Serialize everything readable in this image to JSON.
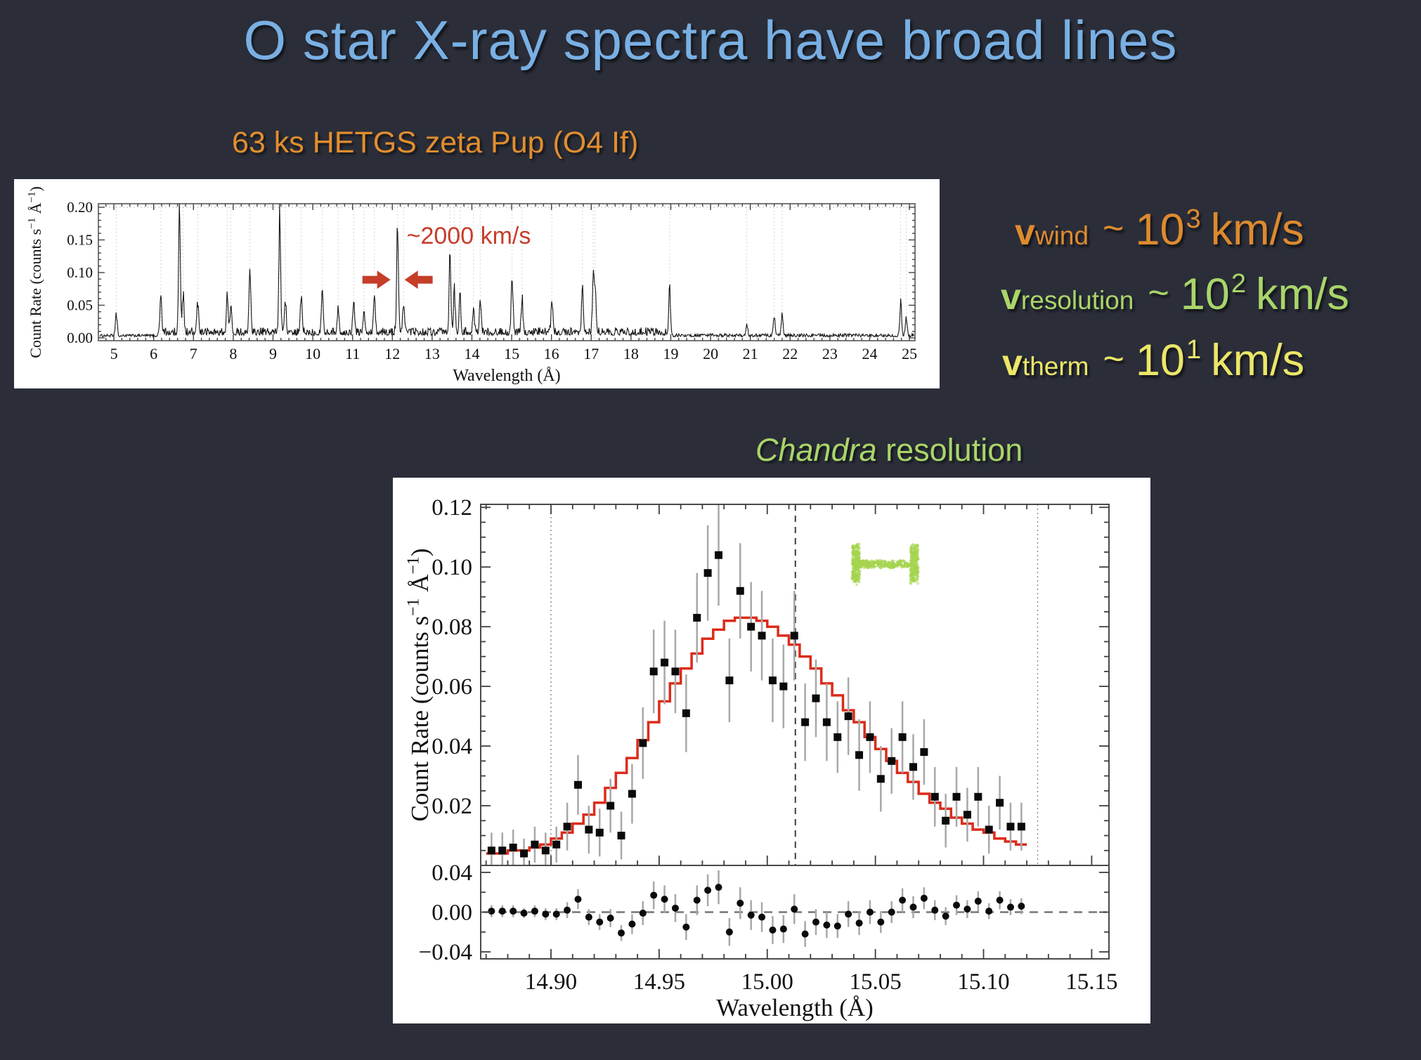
{
  "slide": {
    "background": "#2b2e39",
    "title": {
      "text": "O star X-ray spectra have broad lines",
      "color": "#79b0e4"
    },
    "subtitle": {
      "text": "63 ks HETGS zeta Pup (O4 If)",
      "color": "#e28e2e"
    },
    "chandra_label": {
      "italic": "Chandra",
      "rest": " resolution",
      "color": "#a9d56a"
    },
    "velocities": [
      {
        "symbol": "v",
        "sub": "wind",
        "tilde": "~",
        "mantissa": "10",
        "exponent": "3",
        "unit": "km/s",
        "color": "#de8a2f"
      },
      {
        "symbol": "v",
        "sub": "resolution",
        "tilde": "~",
        "mantissa": "10",
        "exponent": "2",
        "unit": "km/s",
        "color": "#a9d56a"
      },
      {
        "symbol": "v",
        "sub": "therm",
        "tilde": "~",
        "mantissa": "10",
        "exponent": "1",
        "unit": "km/s",
        "color": "#ece668"
      }
    ]
  },
  "chart_data": [
    {
      "id": "hetgs-spectrum",
      "type": "line",
      "title": "63 ks HETGS zeta Pup (O4 If)",
      "xlabel": "Wavelength (Å)",
      "ylabel": "Count Rate (counts s⁻¹ Å⁻¹)",
      "xlim": [
        4.61,
        25.14
      ],
      "ylim": [
        -0.0043,
        0.2054
      ],
      "xticks": [
        5,
        6,
        7,
        8,
        9,
        10,
        11,
        12,
        13,
        14,
        15,
        16,
        17,
        18,
        19,
        20,
        21,
        22,
        23,
        24,
        25
      ],
      "yticks": [
        0.0,
        0.05,
        0.1,
        0.15,
        0.2
      ],
      "grid": "dotted vertical markers at emission lines, dotted line at y=0.20",
      "line_color": "#161616",
      "annotation": {
        "text": "~2000 km/s",
        "color": "#c63d2a",
        "at_wavelength": 12.13,
        "arrow_y": 0.089
      },
      "emission_lines": [
        [
          5.06,
          0.035
        ],
        [
          6.18,
          0.055
        ],
        [
          6.65,
          0.2
        ],
        [
          6.74,
          0.06
        ],
        [
          7.11,
          0.045
        ],
        [
          7.85,
          0.06
        ],
        [
          7.94,
          0.04
        ],
        [
          8.42,
          0.1
        ],
        [
          9.17,
          0.195
        ],
        [
          9.31,
          0.05
        ],
        [
          9.71,
          0.055
        ],
        [
          10.24,
          0.072
        ],
        [
          10.64,
          0.035
        ],
        [
          11.03,
          0.045
        ],
        [
          11.29,
          0.04
        ],
        [
          11.55,
          0.06
        ],
        [
          12.13,
          0.165
        ],
        [
          12.28,
          0.05
        ],
        [
          13.45,
          0.12
        ],
        [
          13.56,
          0.065
        ],
        [
          13.7,
          0.055
        ],
        [
          14.04,
          0.04
        ],
        [
          14.21,
          0.05
        ],
        [
          15.01,
          0.095
        ],
        [
          15.26,
          0.05
        ],
        [
          16.01,
          0.05
        ],
        [
          16.78,
          0.062
        ],
        [
          17.05,
          0.082
        ],
        [
          17.1,
          0.07
        ],
        [
          18.97,
          0.072
        ],
        [
          20.91,
          0.018
        ],
        [
          21.6,
          0.03
        ],
        [
          21.8,
          0.032
        ],
        [
          24.78,
          0.05
        ],
        [
          24.92,
          0.028
        ]
      ],
      "noise_floor": 0.006
    },
    {
      "id": "fe17-line-profile",
      "type": "scatter",
      "caption": "Chandra resolution",
      "xlabel": "Wavelength (Å)",
      "ylabel": "Count Rate (counts s⁻¹ Å⁻¹)",
      "xlim": [
        14.8675,
        15.158
      ],
      "ylim": [
        0,
        0.121
      ],
      "xticks": [
        14.9,
        14.95,
        15.0,
        15.05,
        15.1,
        15.15
      ],
      "yticks": [
        0.02,
        0.04,
        0.06,
        0.08,
        0.1,
        0.12
      ],
      "reference_lines": {
        "dotted": [
          14.9,
          15.125
        ],
        "dashed": [
          15.013
        ]
      },
      "resolution_bar": {
        "x_start": 15.041,
        "x_end": 15.068,
        "y": 0.101,
        "half_height": 0.006,
        "color": "#a5d44f"
      },
      "model_color": "#dc2b1a",
      "point_color": "#0a0a0a",
      "error_bar_color": "#a8a8a8",
      "bin_width": 0.005,
      "points": [
        [
          14.8725,
          0.005,
          0.006
        ],
        [
          14.8775,
          0.005,
          0.006
        ],
        [
          14.8825,
          0.006,
          0.006
        ],
        [
          14.8875,
          0.004,
          0.005
        ],
        [
          14.8925,
          0.007,
          0.006
        ],
        [
          14.8975,
          0.005,
          0.006
        ],
        [
          14.9025,
          0.007,
          0.006
        ],
        [
          14.9075,
          0.013,
          0.008
        ],
        [
          14.9125,
          0.027,
          0.01
        ],
        [
          14.9175,
          0.012,
          0.008
        ],
        [
          14.9225,
          0.011,
          0.008
        ],
        [
          14.9275,
          0.02,
          0.009
        ],
        [
          14.9325,
          0.01,
          0.008
        ],
        [
          14.9375,
          0.024,
          0.01
        ],
        [
          14.9425,
          0.041,
          0.012
        ],
        [
          14.9475,
          0.065,
          0.014
        ],
        [
          14.9525,
          0.068,
          0.014
        ],
        [
          14.9575,
          0.065,
          0.014
        ],
        [
          14.9625,
          0.051,
          0.013
        ],
        [
          14.9675,
          0.083,
          0.015
        ],
        [
          14.9725,
          0.098,
          0.016
        ],
        [
          14.9775,
          0.104,
          0.017
        ],
        [
          14.9825,
          0.062,
          0.014
        ],
        [
          14.9875,
          0.092,
          0.016
        ],
        [
          14.9925,
          0.08,
          0.015
        ],
        [
          14.9975,
          0.077,
          0.015
        ],
        [
          15.0025,
          0.062,
          0.014
        ],
        [
          15.0075,
          0.06,
          0.014
        ],
        [
          15.0125,
          0.077,
          0.015
        ],
        [
          15.0175,
          0.048,
          0.013
        ],
        [
          15.0225,
          0.056,
          0.013
        ],
        [
          15.0275,
          0.048,
          0.013
        ],
        [
          15.0325,
          0.043,
          0.012
        ],
        [
          15.0375,
          0.05,
          0.013
        ],
        [
          15.0425,
          0.037,
          0.012
        ],
        [
          15.0475,
          0.043,
          0.012
        ],
        [
          15.0525,
          0.029,
          0.011
        ],
        [
          15.0575,
          0.035,
          0.011
        ],
        [
          15.0625,
          0.043,
          0.012
        ],
        [
          15.0675,
          0.033,
          0.011
        ],
        [
          15.0725,
          0.038,
          0.011
        ],
        [
          15.0775,
          0.023,
          0.01
        ],
        [
          15.0825,
          0.015,
          0.009
        ],
        [
          15.0875,
          0.023,
          0.01
        ],
        [
          15.0925,
          0.017,
          0.009
        ],
        [
          15.0975,
          0.023,
          0.01
        ],
        [
          15.1025,
          0.012,
          0.008
        ],
        [
          15.1075,
          0.021,
          0.009
        ],
        [
          15.1125,
          0.013,
          0.008
        ],
        [
          15.1175,
          0.013,
          0.008
        ]
      ],
      "model": [
        0.004,
        0.004,
        0.005,
        0.005,
        0.006,
        0.007,
        0.009,
        0.011,
        0.014,
        0.017,
        0.021,
        0.026,
        0.031,
        0.036,
        0.042,
        0.048,
        0.055,
        0.061,
        0.066,
        0.071,
        0.076,
        0.079,
        0.082,
        0.083,
        0.083,
        0.082,
        0.08,
        0.077,
        0.074,
        0.07,
        0.066,
        0.061,
        0.057,
        0.052,
        0.048,
        0.043,
        0.039,
        0.035,
        0.031,
        0.028,
        0.024,
        0.021,
        0.019,
        0.016,
        0.014,
        0.012,
        0.011,
        0.009,
        0.008,
        0.007
      ],
      "residual_panel": {
        "ylim": [
          -0.047,
          0.047
        ],
        "yticks": [
          -0.04,
          0.0,
          0.04
        ],
        "zero_line": "dashed"
      }
    }
  ]
}
